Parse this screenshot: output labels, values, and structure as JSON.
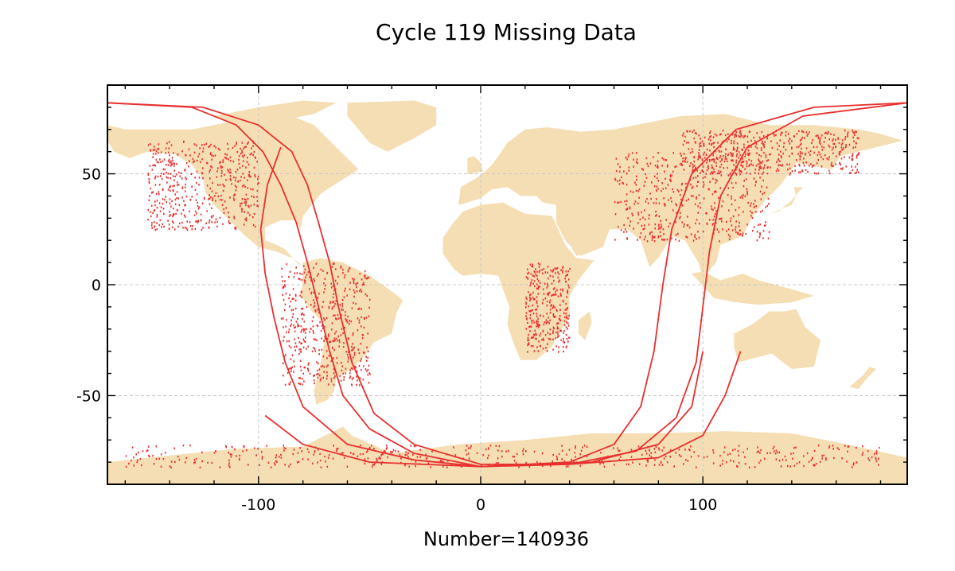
{
  "title": "Cycle 119 Missing Data",
  "xlabel": "Number=140936",
  "colors": {
    "land": "#f5deb3",
    "missing": "#e8302f",
    "grid": "#c8c8c8",
    "axis": "#000000"
  },
  "chart_data": {
    "type": "scatter",
    "title": "Cycle 119 Missing Data",
    "xlabel": "Number=140936",
    "ylabel": "",
    "xlim": [
      -168,
      192
    ],
    "ylim": [
      -90,
      90
    ],
    "xticks": [
      -100,
      0,
      100
    ],
    "yticks": [
      -50,
      0,
      50
    ],
    "xtick_labels": [
      "-100",
      "0",
      "100"
    ],
    "ytick_labels": [
      "-50",
      "0",
      "50"
    ],
    "grid": true,
    "missing_count": 140936,
    "orbit_tracks": [
      [
        [
          -168,
          82
        ],
        [
          -130,
          80
        ],
        [
          -110,
          72
        ],
        [
          -98,
          60
        ],
        [
          -90,
          45
        ],
        [
          -83,
          28
        ],
        [
          -78,
          10
        ],
        [
          -73,
          -10
        ],
        [
          -68,
          -30
        ],
        [
          -62,
          -50
        ],
        [
          -50,
          -65
        ],
        [
          -30,
          -76
        ],
        [
          0,
          -82
        ],
        [
          40,
          -80
        ],
        [
          60,
          -72
        ],
        [
          72,
          -55
        ],
        [
          78,
          -30
        ],
        [
          82,
          0
        ],
        [
          86,
          25
        ],
        [
          95,
          50
        ],
        [
          115,
          70
        ],
        [
          150,
          80
        ],
        [
          192,
          82
        ]
      ],
      [
        [
          -168,
          82
        ],
        [
          -125,
          80
        ],
        [
          -100,
          72
        ],
        [
          -85,
          60
        ],
        [
          -78,
          45
        ],
        [
          -73,
          28
        ],
        [
          -68,
          10
        ],
        [
          -64,
          -10
        ],
        [
          -58,
          -35
        ],
        [
          -48,
          -58
        ],
        [
          -30,
          -72
        ],
        [
          0,
          -81
        ],
        [
          40,
          -81
        ],
        [
          70,
          -75
        ],
        [
          88,
          -60
        ],
        [
          97,
          -35
        ],
        [
          100,
          -10
        ],
        [
          103,
          15
        ],
        [
          108,
          40
        ],
        [
          120,
          62
        ],
        [
          145,
          76
        ],
        [
          192,
          82
        ]
      ],
      [
        [
          -90,
          62
        ],
        [
          -96,
          45
        ],
        [
          -99,
          25
        ],
        [
          -97,
          5
        ],
        [
          -93,
          -15
        ],
        [
          -88,
          -35
        ],
        [
          -80,
          -55
        ],
        [
          -60,
          -72
        ],
        [
          -30,
          -79
        ],
        [
          0,
          -82
        ],
        [
          40,
          -81
        ],
        [
          80,
          -78
        ],
        [
          100,
          -68
        ],
        [
          110,
          -50
        ],
        [
          117,
          -30
        ]
      ],
      [
        [
          -97,
          -59
        ],
        [
          -80,
          -72
        ],
        [
          -50,
          -80
        ],
        [
          0,
          -82
        ],
        [
          50,
          -80
        ],
        [
          80,
          -72
        ],
        [
          95,
          -55
        ],
        [
          100,
          -30
        ]
      ]
    ],
    "dense_regions": [
      {
        "lon": [
          -150,
          -100
        ],
        "lat": [
          25,
          65
        ]
      },
      {
        "lon": [
          -90,
          -50
        ],
        "lat": [
          -45,
          10
        ]
      },
      {
        "lon": [
          20,
          40
        ],
        "lat": [
          -30,
          10
        ]
      },
      {
        "lon": [
          60,
          130
        ],
        "lat": [
          20,
          60
        ]
      },
      {
        "lon": [
          90,
          170
        ],
        "lat": [
          50,
          70
        ]
      },
      {
        "lon": [
          -160,
          180
        ],
        "lat": [
          -82,
          -72
        ]
      }
    ]
  }
}
